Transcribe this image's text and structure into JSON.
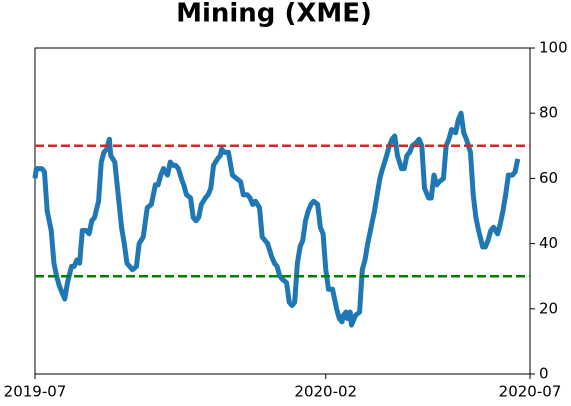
{
  "chart_data": {
    "type": "line",
    "title": "Mining (XME)",
    "x": [
      0,
      1,
      5,
      7,
      9,
      12,
      14,
      16,
      18,
      21,
      22,
      24,
      27,
      29,
      31,
      33,
      35,
      38,
      40,
      42,
      44,
      47,
      49,
      51,
      53,
      55,
      56,
      59,
      61,
      64,
      66,
      68,
      70,
      72,
      75,
      77,
      80,
      83,
      86,
      89,
      91,
      93,
      95,
      98,
      100,
      102,
      104,
      106,
      109,
      110,
      112,
      115,
      117,
      119,
      121,
      123,
      126,
      128,
      130,
      132,
      135,
      137,
      138,
      140,
      143,
      146,
      149,
      152,
      154,
      157,
      159,
      161,
      163,
      166,
      168,
      170,
      172,
      175,
      177,
      179,
      181,
      183,
      186,
      188,
      190,
      192,
      194,
      196,
      198,
      200,
      202,
      204,
      206,
      209,
      211,
      213,
      215,
      217,
      220,
      223,
      225,
      227,
      228,
      230,
      231,
      233,
      234,
      237,
      240,
      242,
      244,
      246,
      248,
      251,
      253,
      255,
      257,
      260,
      262,
      264,
      266,
      268,
      271,
      273,
      275,
      277,
      279,
      282,
      284,
      286,
      288,
      291,
      293,
      295,
      297,
      299,
      302,
      304,
      306,
      308,
      311,
      313,
      315,
      317,
      319,
      322,
      324,
      326,
      328,
      331,
      333,
      335,
      337,
      339,
      342,
      344,
      346,
      348,
      350,
      353,
      355,
      357
    ],
    "series": [
      {
        "color": "#1f77b4",
        "values": [
          60,
          63,
          63,
          62,
          50,
          44,
          34,
          30,
          27,
          24,
          23,
          28,
          33,
          33,
          35,
          34,
          44,
          44,
          43,
          47,
          48,
          53,
          65,
          68,
          69,
          72,
          67,
          65,
          57,
          45,
          40,
          34,
          33,
          32,
          33,
          40,
          42,
          51,
          52,
          58,
          58,
          61,
          63,
          61,
          65,
          64,
          64,
          63,
          59,
          58,
          55,
          54,
          48,
          47,
          48,
          52,
          54,
          55,
          57,
          64,
          66,
          67,
          69,
          68,
          68,
          61,
          60,
          59,
          55,
          55,
          54,
          52,
          53,
          51,
          42,
          41,
          40,
          36,
          34,
          33,
          30,
          29,
          28,
          22,
          21,
          22,
          34,
          39,
          41,
          47,
          50,
          52,
          53,
          52,
          45,
          43,
          32,
          26,
          26,
          20,
          17,
          16,
          18,
          19,
          17,
          19,
          15,
          18,
          19,
          32,
          35,
          40,
          44,
          50,
          55,
          60,
          63,
          67,
          70,
          72,
          73,
          67,
          63,
          63,
          67,
          68,
          70,
          71,
          72,
          70,
          57,
          54,
          54,
          61,
          58,
          59,
          60,
          70,
          72,
          75,
          74,
          78,
          80,
          74,
          72,
          68,
          55,
          48,
          44,
          39,
          39,
          41,
          44,
          45,
          43,
          46,
          50,
          55,
          61,
          61,
          62,
          66
        ]
      }
    ],
    "xlim": [
      0,
      366
    ],
    "xticks": [
      {
        "value": 0,
        "label": "2019-07"
      },
      {
        "value": 215,
        "label": "2020-02"
      },
      {
        "value": 366,
        "label": "2020-07"
      }
    ],
    "ylim": [
      0,
      100
    ],
    "yticks": [
      0,
      20,
      40,
      60,
      80,
      100
    ],
    "hlines": [
      {
        "value": 70,
        "color": "#d62728"
      },
      {
        "value": 30,
        "color": "#008000"
      }
    ]
  }
}
